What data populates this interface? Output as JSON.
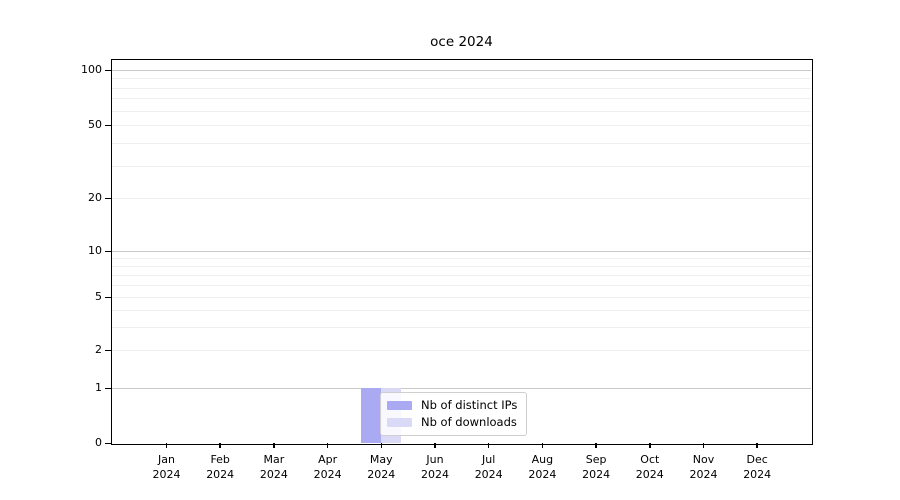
{
  "chart_data": {
    "type": "bar",
    "title": "oce 2024",
    "categories": [
      "Jan 2024",
      "Feb 2024",
      "Mar 2024",
      "Apr 2024",
      "May 2024",
      "Jun 2024",
      "Jul 2024",
      "Aug 2024",
      "Sep 2024",
      "Oct 2024",
      "Nov 2024",
      "Dec 2024"
    ],
    "series": [
      {
        "name": "Nb of distinct IPs",
        "color": "#a9aaf2",
        "values": [
          0,
          0,
          0,
          0,
          1,
          0,
          0,
          0,
          0,
          0,
          0,
          0
        ]
      },
      {
        "name": "Nb of downloads",
        "color": "#dadaf7",
        "values": [
          0,
          0,
          0,
          0,
          1,
          0,
          0,
          0,
          0,
          0,
          0,
          0
        ]
      }
    ],
    "y_axis": {
      "scale": "symlog",
      "tick_values": [
        0,
        1,
        2,
        5,
        10,
        20,
        50,
        100
      ],
      "tick_labels": [
        "0",
        "1",
        "2",
        "5",
        "10",
        "20",
        "50",
        "100"
      ],
      "major_grid_values": [
        1,
        10,
        100
      ],
      "minor_grid_values": [
        3,
        4,
        6,
        7,
        8,
        9,
        30,
        40,
        60,
        70,
        80,
        90
      ],
      "ylim": [
        0,
        115
      ]
    },
    "x_axis": {
      "tick_count": 12
    },
    "legend": {
      "position": "inside-bottom-over-may-bars"
    },
    "grid": true,
    "colors": {
      "grid_major": "#c9c9c9",
      "grid_minor": "#efefef",
      "axis": "#000000",
      "background": "#ffffff"
    }
  }
}
